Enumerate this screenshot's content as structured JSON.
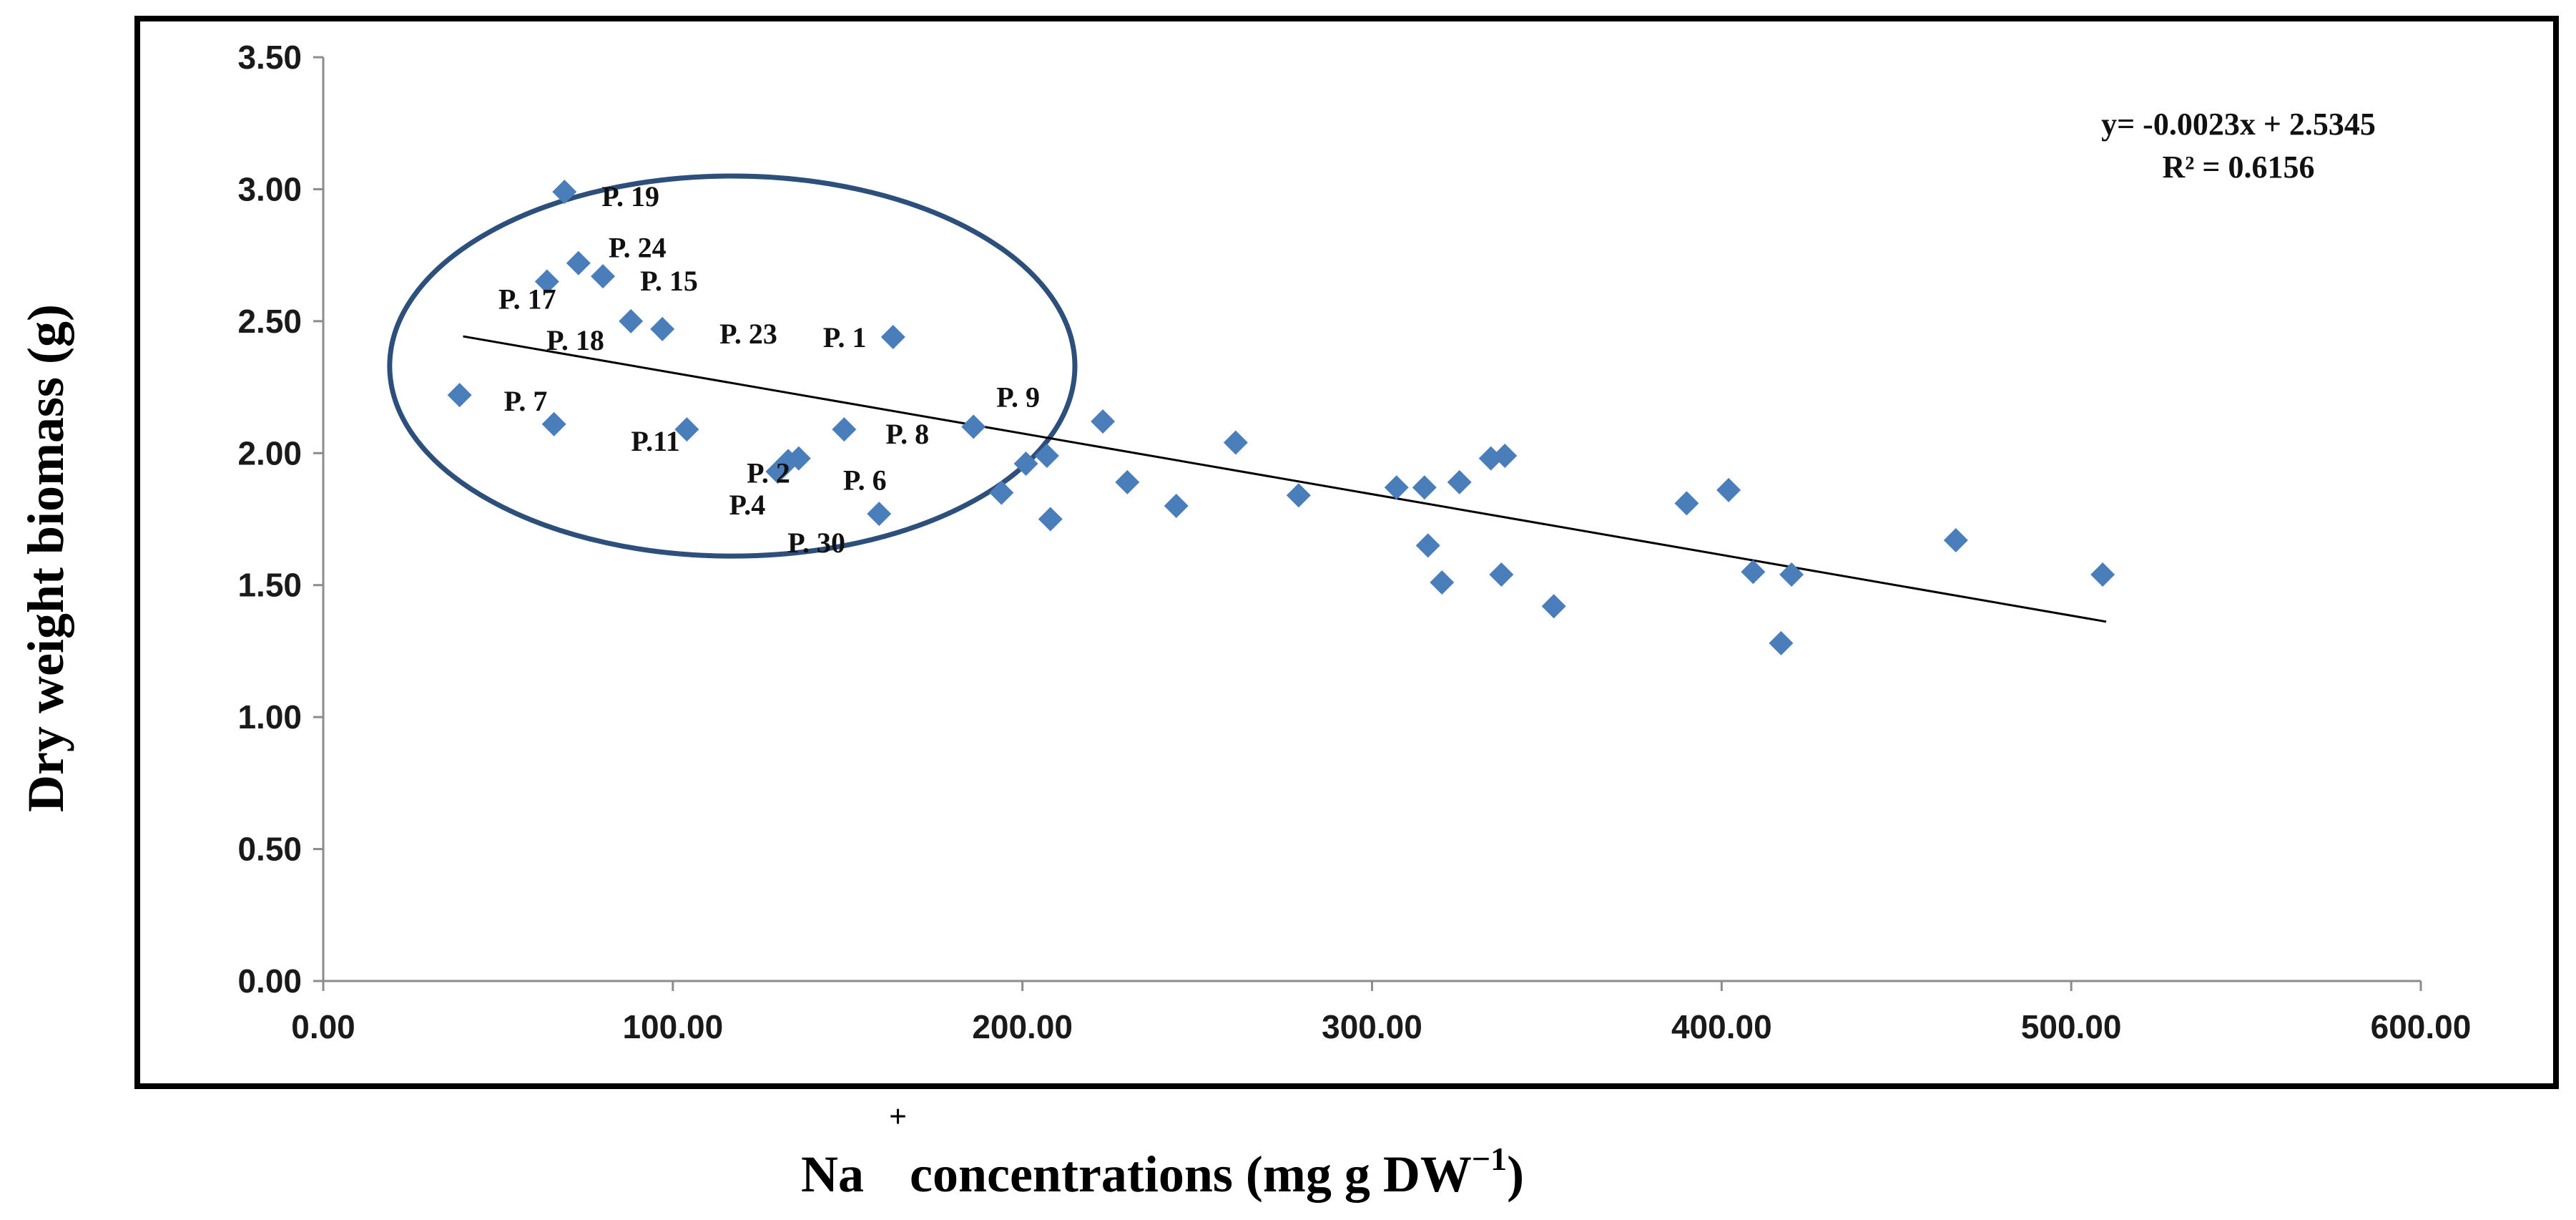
{
  "colors": {
    "marker": "#4a7ebb",
    "trend": "#000000",
    "ellipse": "#2d4f7c",
    "frame": "#000000"
  },
  "chart_data": {
    "type": "scatter",
    "title": "",
    "xlabel_base": "Na",
    "xlabel_sup": "+",
    "xlabel_rest": " concentrations (mg g DW",
    "xlabel_unit_sup": "−1",
    "xlabel_close": ")",
    "ylabel": "Dry weight biomass (g)",
    "xlim": [
      0,
      600
    ],
    "ylim": [
      0,
      3.5
    ],
    "x_ticks": [
      "0.00",
      "100.00",
      "200.00",
      "300.00",
      "400.00",
      "500.00",
      "600.00"
    ],
    "y_ticks": [
      "0.00",
      "0.50",
      "1.00",
      "1.50",
      "2.00",
      "2.50",
      "3.00",
      "3.50"
    ],
    "x_tick_values": [
      0,
      100,
      200,
      300,
      400,
      500,
      600
    ],
    "y_tick_values": [
      0,
      0.5,
      1,
      1.5,
      2,
      2.5,
      3,
      3.5
    ],
    "equation": "y= -0.0023x + 2.5345",
    "r_squared": "R² = 0.6156",
    "trendline": {
      "slope": -0.0023,
      "intercept": 2.5345,
      "x_start": 40,
      "x_end": 510
    },
    "highlight_ellipse": {
      "cx": 117,
      "cy": 2.33,
      "rx_units": 98,
      "ry_units": 0.72
    },
    "points": [
      {
        "x": 69,
        "y": 2.99,
        "label": "P. 19"
      },
      {
        "x": 73,
        "y": 2.72,
        "label": "P. 24"
      },
      {
        "x": 64,
        "y": 2.65,
        "label": "P. 17"
      },
      {
        "x": 80,
        "y": 2.67,
        "label": "P. 15"
      },
      {
        "x": 88,
        "y": 2.5,
        "label": "P. 18"
      },
      {
        "x": 97,
        "y": 2.47,
        "label": "P. 23"
      },
      {
        "x": 163,
        "y": 2.44,
        "label": "P. 1"
      },
      {
        "x": 39,
        "y": 2.22,
        "label": "P. 7"
      },
      {
        "x": 66,
        "y": 2.11,
        "label": ""
      },
      {
        "x": 104,
        "y": 2.09,
        "label": "P.11"
      },
      {
        "x": 133,
        "y": 1.97,
        "label": "P. 2"
      },
      {
        "x": 136,
        "y": 1.98,
        "label": "P. 6"
      },
      {
        "x": 130,
        "y": 1.93,
        "label": "P.4"
      },
      {
        "x": 149,
        "y": 2.09,
        "label": "P. 8"
      },
      {
        "x": 159,
        "y": 1.77,
        "label": "P. 30"
      },
      {
        "x": 186,
        "y": 2.1,
        "label": "P. 9"
      },
      {
        "x": 194,
        "y": 1.85,
        "label": ""
      },
      {
        "x": 201,
        "y": 1.96,
        "label": ""
      },
      {
        "x": 207,
        "y": 1.99,
        "label": ""
      },
      {
        "x": 208,
        "y": 1.75,
        "label": ""
      },
      {
        "x": 223,
        "y": 2.12,
        "label": ""
      },
      {
        "x": 230,
        "y": 1.89,
        "label": ""
      },
      {
        "x": 244,
        "y": 1.8,
        "label": ""
      },
      {
        "x": 261,
        "y": 2.04,
        "label": ""
      },
      {
        "x": 279,
        "y": 1.84,
        "label": ""
      },
      {
        "x": 307,
        "y": 1.87,
        "label": ""
      },
      {
        "x": 315,
        "y": 1.87,
        "label": ""
      },
      {
        "x": 316,
        "y": 1.65,
        "label": ""
      },
      {
        "x": 320,
        "y": 1.51,
        "label": ""
      },
      {
        "x": 325,
        "y": 1.89,
        "label": ""
      },
      {
        "x": 334,
        "y": 1.98,
        "label": ""
      },
      {
        "x": 338,
        "y": 1.99,
        "label": ""
      },
      {
        "x": 337,
        "y": 1.54,
        "label": ""
      },
      {
        "x": 352,
        "y": 1.42,
        "label": ""
      },
      {
        "x": 390,
        "y": 1.81,
        "label": ""
      },
      {
        "x": 402,
        "y": 1.86,
        "label": ""
      },
      {
        "x": 409,
        "y": 1.55,
        "label": ""
      },
      {
        "x": 417,
        "y": 1.28,
        "label": ""
      },
      {
        "x": 420,
        "y": 1.54,
        "label": ""
      },
      {
        "x": 467,
        "y": 1.67,
        "label": ""
      },
      {
        "x": 509,
        "y": 1.54,
        "label": ""
      }
    ]
  }
}
